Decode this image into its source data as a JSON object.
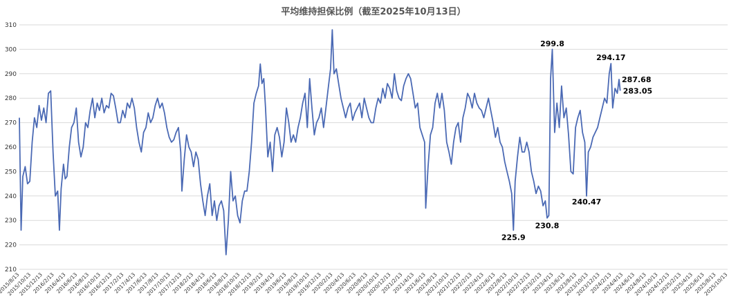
{
  "chart_data": {
    "type": "line",
    "title": "平均维持担保比例（截至2025年10月13日）",
    "xlabel": "",
    "ylabel": "",
    "ylim": [
      210,
      310
    ],
    "yticks": [
      210,
      220,
      230,
      240,
      250,
      260,
      270,
      280,
      290,
      300,
      310
    ],
    "grid": true,
    "x_tick_labels": [
      "2015/8/13",
      "2015/10/13",
      "2015/12/13",
      "2016/2/13",
      "2016/4/13",
      "2016/6/13",
      "2016/8/13",
      "2016/10/13",
      "2016/12/13",
      "2017/2/13",
      "2017/4/13",
      "2017/6/13",
      "2017/8/13",
      "2017/10/13",
      "2017/12/13",
      "2018/2/13",
      "2018/4/13",
      "2018/6/13",
      "2018/8/13",
      "2018/10/13",
      "2018/12/13",
      "2019/2/13",
      "2019/4/13",
      "2019/6/13",
      "2019/8/13",
      "2019/10/13",
      "2019/12/13",
      "2020/2/13",
      "2020/4/13",
      "2020/6/13",
      "2020/8/13",
      "2020/10/13",
      "2020/12/13",
      "2021/2/13",
      "2021/4/13",
      "2021/6/13",
      "2021/8/13",
      "2021/10/13",
      "2021/12/13",
      "2022/2/13",
      "2022/4/13",
      "2022/6/13",
      "2022/8/13",
      "2022/10/13",
      "2022/12/13",
      "2023/2/13",
      "2023/4/13",
      "2023/6/13",
      "2023/8/13",
      "2023/10/13",
      "2023/12/13",
      "2024/2/13",
      "2024/4/13",
      "2024/6/13",
      "2024/8/13",
      "2024/10/13",
      "2024/12/13",
      "2025/2/13",
      "2025/4/13",
      "2025/6/13",
      "2025/8/13",
      "2025/10/13"
    ],
    "series": [
      {
        "color": "#4a69b4",
        "points": [
          [
            0,
            272
          ],
          [
            0.15,
            226
          ],
          [
            0.3,
            248
          ],
          [
            0.5,
            252
          ],
          [
            0.7,
            245
          ],
          [
            0.9,
            246
          ],
          [
            1.1,
            262
          ],
          [
            1.3,
            272
          ],
          [
            1.5,
            268
          ],
          [
            1.7,
            277
          ],
          [
            1.9,
            271
          ],
          [
            2.1,
            276
          ],
          [
            2.3,
            270
          ],
          [
            2.5,
            282
          ],
          [
            2.7,
            283
          ],
          [
            2.9,
            258
          ],
          [
            3.1,
            240
          ],
          [
            3.3,
            242
          ],
          [
            3.45,
            226
          ],
          [
            3.6,
            243
          ],
          [
            3.8,
            253
          ],
          [
            3.95,
            247
          ],
          [
            4.1,
            248
          ],
          [
            4.3,
            260
          ],
          [
            4.5,
            268
          ],
          [
            4.7,
            270
          ],
          [
            4.9,
            276
          ],
          [
            5.1,
            262
          ],
          [
            5.3,
            256
          ],
          [
            5.5,
            260
          ],
          [
            5.7,
            270
          ],
          [
            5.9,
            268
          ],
          [
            6.1,
            275
          ],
          [
            6.3,
            280
          ],
          [
            6.5,
            272
          ],
          [
            6.7,
            278
          ],
          [
            6.9,
            275
          ],
          [
            7.1,
            280
          ],
          [
            7.3,
            274
          ],
          [
            7.5,
            277
          ],
          [
            7.7,
            276
          ],
          [
            7.9,
            282
          ],
          [
            8.1,
            281
          ],
          [
            8.3,
            276
          ],
          [
            8.5,
            270
          ],
          [
            8.7,
            270
          ],
          [
            8.9,
            275
          ],
          [
            9.1,
            272
          ],
          [
            9.3,
            278
          ],
          [
            9.5,
            276
          ],
          [
            9.7,
            280
          ],
          [
            9.9,
            276
          ],
          [
            10.1,
            268
          ],
          [
            10.3,
            262
          ],
          [
            10.5,
            258
          ],
          [
            10.7,
            266
          ],
          [
            10.9,
            268
          ],
          [
            11.1,
            274
          ],
          [
            11.3,
            270
          ],
          [
            11.5,
            272
          ],
          [
            11.7,
            277
          ],
          [
            11.9,
            280
          ],
          [
            12.1,
            276
          ],
          [
            12.3,
            278
          ],
          [
            12.5,
            274
          ],
          [
            12.7,
            268
          ],
          [
            12.9,
            264
          ],
          [
            13.1,
            262
          ],
          [
            13.3,
            263
          ],
          [
            13.5,
            266
          ],
          [
            13.7,
            268
          ],
          [
            13.9,
            258
          ],
          [
            14.0,
            242
          ],
          [
            14.2,
            255
          ],
          [
            14.4,
            265
          ],
          [
            14.6,
            260
          ],
          [
            14.8,
            258
          ],
          [
            15.0,
            252
          ],
          [
            15.2,
            258
          ],
          [
            15.4,
            255
          ],
          [
            15.6,
            245
          ],
          [
            15.8,
            238
          ],
          [
            16.0,
            232
          ],
          [
            16.2,
            240
          ],
          [
            16.4,
            245
          ],
          [
            16.6,
            232
          ],
          [
            16.8,
            238
          ],
          [
            17.0,
            230
          ],
          [
            17.2,
            236
          ],
          [
            17.4,
            238
          ],
          [
            17.6,
            234
          ],
          [
            17.8,
            216
          ],
          [
            18.0,
            230
          ],
          [
            18.2,
            250
          ],
          [
            18.4,
            238
          ],
          [
            18.6,
            240
          ],
          [
            18.8,
            232
          ],
          [
            19.0,
            229
          ],
          [
            19.2,
            238
          ],
          [
            19.4,
            242
          ],
          [
            19.6,
            242
          ],
          [
            19.8,
            250
          ],
          [
            20.0,
            262
          ],
          [
            20.2,
            278
          ],
          [
            20.4,
            282
          ],
          [
            20.6,
            285
          ],
          [
            20.75,
            294
          ],
          [
            20.9,
            286
          ],
          [
            21.05,
            288
          ],
          [
            21.2,
            276
          ],
          [
            21.4,
            256
          ],
          [
            21.6,
            262
          ],
          [
            21.8,
            250
          ],
          [
            22.0,
            265
          ],
          [
            22.2,
            268
          ],
          [
            22.4,
            264
          ],
          [
            22.6,
            256
          ],
          [
            22.8,
            262
          ],
          [
            23.0,
            276
          ],
          [
            23.2,
            270
          ],
          [
            23.4,
            262
          ],
          [
            23.6,
            265
          ],
          [
            23.8,
            262
          ],
          [
            24.0,
            268
          ],
          [
            24.2,
            272
          ],
          [
            24.4,
            278
          ],
          [
            24.6,
            282
          ],
          [
            24.8,
            268
          ],
          [
            25.0,
            288
          ],
          [
            25.2,
            276
          ],
          [
            25.4,
            265
          ],
          [
            25.6,
            270
          ],
          [
            25.8,
            272
          ],
          [
            26.0,
            276
          ],
          [
            26.2,
            268
          ],
          [
            26.4,
            276
          ],
          [
            26.6,
            284
          ],
          [
            26.8,
            292
          ],
          [
            26.95,
            308
          ],
          [
            27.1,
            290
          ],
          [
            27.3,
            292
          ],
          [
            27.5,
            286
          ],
          [
            27.7,
            280
          ],
          [
            27.9,
            276
          ],
          [
            28.1,
            272
          ],
          [
            28.3,
            276
          ],
          [
            28.5,
            278
          ],
          [
            28.7,
            271
          ],
          [
            28.9,
            274
          ],
          [
            29.1,
            276
          ],
          [
            29.3,
            278
          ],
          [
            29.5,
            272
          ],
          [
            29.7,
            280
          ],
          [
            29.9,
            276
          ],
          [
            30.1,
            272
          ],
          [
            30.3,
            270
          ],
          [
            30.5,
            270
          ],
          [
            30.7,
            276
          ],
          [
            30.9,
            280
          ],
          [
            31.1,
            278
          ],
          [
            31.3,
            284
          ],
          [
            31.5,
            280
          ],
          [
            31.7,
            286
          ],
          [
            31.9,
            284
          ],
          [
            32.1,
            280
          ],
          [
            32.3,
            290
          ],
          [
            32.5,
            283
          ],
          [
            32.7,
            280
          ],
          [
            32.9,
            279
          ],
          [
            33.1,
            285
          ],
          [
            33.3,
            288
          ],
          [
            33.5,
            290
          ],
          [
            33.7,
            288
          ],
          [
            33.9,
            282
          ],
          [
            34.1,
            276
          ],
          [
            34.3,
            278
          ],
          [
            34.5,
            268
          ],
          [
            34.7,
            265
          ],
          [
            34.9,
            262
          ],
          [
            35.0,
            235
          ],
          [
            35.2,
            252
          ],
          [
            35.4,
            265
          ],
          [
            35.6,
            268
          ],
          [
            35.8,
            278
          ],
          [
            36.0,
            282
          ],
          [
            36.2,
            276
          ],
          [
            36.4,
            282
          ],
          [
            36.6,
            275
          ],
          [
            36.8,
            262
          ],
          [
            37.0,
            258
          ],
          [
            37.2,
            253
          ],
          [
            37.4,
            262
          ],
          [
            37.6,
            268
          ],
          [
            37.8,
            270
          ],
          [
            38.0,
            262
          ],
          [
            38.2,
            272
          ],
          [
            38.4,
            276
          ],
          [
            38.6,
            282
          ],
          [
            38.8,
            280
          ],
          [
            39.0,
            276
          ],
          [
            39.2,
            282
          ],
          [
            39.4,
            278
          ],
          [
            39.6,
            276
          ],
          [
            39.8,
            275
          ],
          [
            40.0,
            272
          ],
          [
            40.2,
            276
          ],
          [
            40.4,
            280
          ],
          [
            40.6,
            275
          ],
          [
            40.8,
            270
          ],
          [
            41.0,
            264
          ],
          [
            41.2,
            268
          ],
          [
            41.4,
            262
          ],
          [
            41.6,
            260
          ],
          [
            41.8,
            254
          ],
          [
            42.0,
            250
          ],
          [
            42.2,
            246
          ],
          [
            42.4,
            241
          ],
          [
            42.55,
            226
          ],
          [
            42.7,
            246
          ],
          [
            42.9,
            256
          ],
          [
            43.1,
            264
          ],
          [
            43.3,
            258
          ],
          [
            43.5,
            258
          ],
          [
            43.7,
            262
          ],
          [
            43.9,
            258
          ],
          [
            44.1,
            250
          ],
          [
            44.3,
            246
          ],
          [
            44.5,
            241
          ],
          [
            44.7,
            244
          ],
          [
            44.9,
            242
          ],
          [
            45.1,
            236
          ],
          [
            45.3,
            238
          ],
          [
            45.45,
            231
          ],
          [
            45.6,
            232
          ],
          [
            45.75,
            288
          ],
          [
            45.9,
            300
          ],
          [
            46.1,
            266
          ],
          [
            46.3,
            278
          ],
          [
            46.5,
            268
          ],
          [
            46.7,
            285
          ],
          [
            46.9,
            272
          ],
          [
            47.1,
            276
          ],
          [
            47.3,
            265
          ],
          [
            47.5,
            250
          ],
          [
            47.7,
            249
          ],
          [
            47.9,
            268
          ],
          [
            48.1,
            272
          ],
          [
            48.3,
            275
          ],
          [
            48.5,
            266
          ],
          [
            48.7,
            262
          ],
          [
            48.85,
            240
          ],
          [
            49.0,
            258
          ],
          [
            49.2,
            260
          ],
          [
            49.4,
            264
          ],
          [
            49.6,
            266
          ],
          [
            49.8,
            268
          ],
          [
            50.0,
            272
          ],
          [
            50.2,
            276
          ],
          [
            50.4,
            280
          ],
          [
            50.6,
            278
          ],
          [
            50.8,
            290
          ],
          [
            50.95,
            294.17
          ],
          [
            51.1,
            276
          ],
          [
            51.3,
            284
          ],
          [
            51.5,
            282
          ],
          [
            51.65,
            287.68
          ],
          [
            51.75,
            283.05
          ]
        ]
      }
    ],
    "annotations": [
      {
        "text": "225.9",
        "x": 42.55,
        "y": 225.9,
        "pos": "below"
      },
      {
        "text": "230.8",
        "x": 45.45,
        "y": 230.8,
        "pos": "below"
      },
      {
        "text": "299.8",
        "x": 45.9,
        "y": 299.8,
        "pos": "above"
      },
      {
        "text": "240.47",
        "x": 48.85,
        "y": 240.47,
        "pos": "below"
      },
      {
        "text": "294.17",
        "x": 50.95,
        "y": 294.17,
        "pos": "above"
      },
      {
        "text": "287.68",
        "x": 51.65,
        "y": 287.68,
        "pos": "right"
      },
      {
        "text": "283.05",
        "x": 51.75,
        "y": 283.05,
        "pos": "right"
      }
    ]
  }
}
